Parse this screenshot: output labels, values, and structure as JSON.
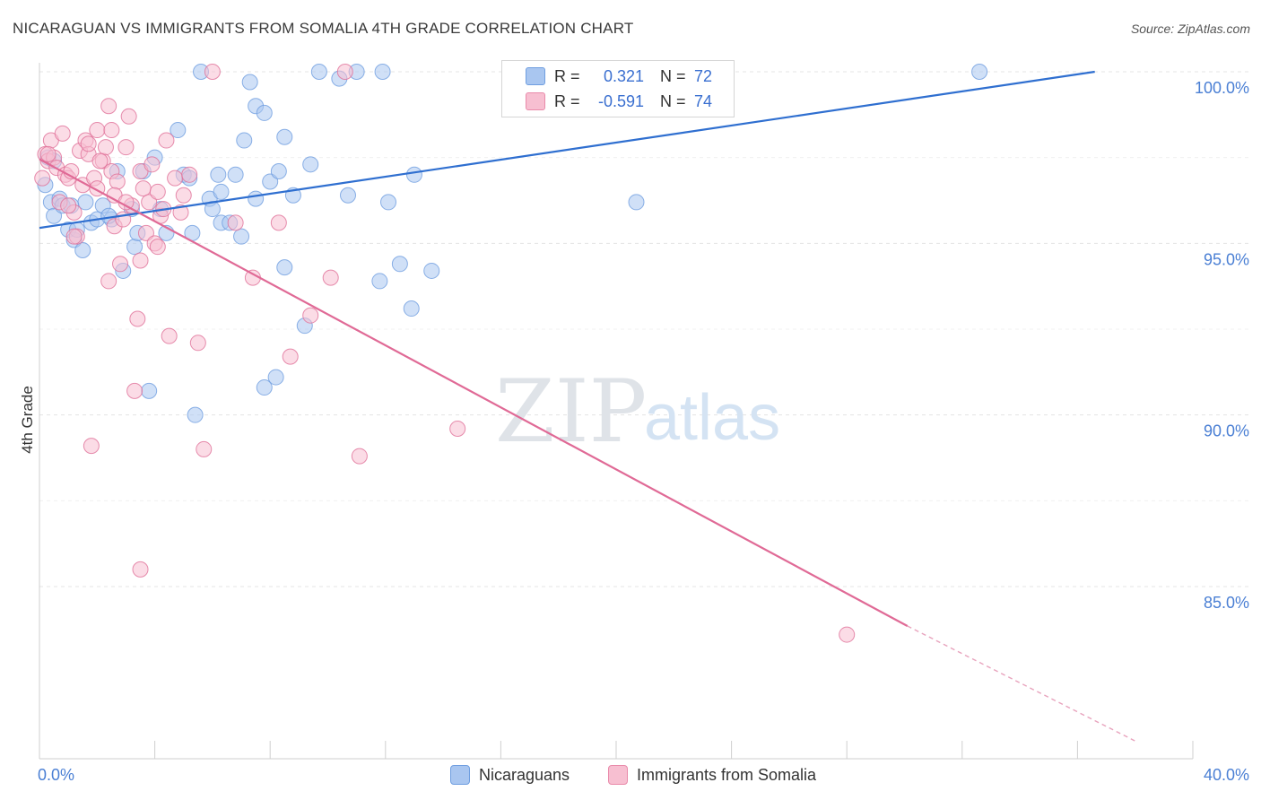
{
  "title": "NICARAGUAN VS IMMIGRANTS FROM SOMALIA 4TH GRADE CORRELATION CHART",
  "source": "Source: ZipAtlas.com",
  "watermark": {
    "zip": "ZIP",
    "atlas": "atlas"
  },
  "legend": {
    "rows": [
      {
        "r_label": "R =",
        "r_value": "0.321",
        "n_label": "N =",
        "n_value": "72",
        "color": "#a9c6f0",
        "border": "#6f9ee0"
      },
      {
        "r_label": "R =",
        "r_value": "-0.591",
        "n_label": "N =",
        "n_value": "74",
        "color": "#f7bfd1",
        "border": "#e98aaa"
      }
    ]
  },
  "bottom_legend": [
    {
      "label": "Nicaraguans",
      "color": "#a9c6f0",
      "border": "#6f9ee0"
    },
    {
      "label": "Immigrants from Somalia",
      "color": "#f7bfd1",
      "border": "#e98aaa"
    }
  ],
  "chart_data": {
    "type": "scatter",
    "title": "NICARAGUAN VS IMMIGRANTS FROM SOMALIA 4TH GRADE CORRELATION CHART",
    "xlabel": "",
    "ylabel": "4th Grade",
    "xlim": [
      0,
      40
    ],
    "ylim": [
      80.5,
      100.8
    ],
    "x_tick_labels": [
      "0.0%",
      "40.0%"
    ],
    "y_ticks": [
      100,
      95,
      90,
      85
    ],
    "y_tick_labels": [
      "100.0%",
      "95.0%",
      "90.0%",
      "85.0%"
    ],
    "grid": true,
    "series": [
      {
        "name": "Nicaraguans",
        "color": "#6f9ee0",
        "fill": "#a9c6f0",
        "trend": {
          "x": [
            0,
            36.6
          ],
          "y": [
            95.45,
            100.0
          ],
          "dashed_to": null
        },
        "points": [
          [
            0.2,
            96.7
          ],
          [
            0.4,
            96.2
          ],
          [
            0.5,
            95.8
          ],
          [
            0.7,
            96.3
          ],
          [
            0.8,
            96.1
          ],
          [
            1.0,
            95.4
          ],
          [
            1.2,
            95.1
          ],
          [
            1.3,
            95.4
          ],
          [
            1.5,
            94.8
          ],
          [
            1.6,
            96.2
          ],
          [
            1.8,
            95.6
          ],
          [
            2.0,
            95.7
          ],
          [
            2.2,
            96.1
          ],
          [
            2.5,
            95.7
          ],
          [
            2.7,
            97.1
          ],
          [
            2.9,
            94.2
          ],
          [
            3.2,
            96.0
          ],
          [
            3.3,
            94.9
          ],
          [
            3.4,
            95.3
          ],
          [
            3.6,
            97.1
          ],
          [
            3.8,
            90.7
          ],
          [
            4.0,
            97.5
          ],
          [
            4.2,
            96.0
          ],
          [
            4.4,
            95.3
          ],
          [
            4.8,
            98.3
          ],
          [
            5.0,
            97.0
          ],
          [
            5.2,
            96.9
          ],
          [
            5.3,
            95.3
          ],
          [
            5.4,
            90.0
          ],
          [
            5.6,
            100.0
          ],
          [
            5.9,
            96.3
          ],
          [
            6.0,
            96.0
          ],
          [
            6.2,
            97.0
          ],
          [
            6.3,
            96.5
          ],
          [
            6.3,
            95.6
          ],
          [
            6.6,
            95.6
          ],
          [
            6.8,
            97.0
          ],
          [
            7.0,
            95.2
          ],
          [
            7.1,
            98.0
          ],
          [
            7.3,
            99.7
          ],
          [
            7.5,
            99.0
          ],
          [
            7.5,
            96.3
          ],
          [
            7.8,
            98.8
          ],
          [
            7.8,
            90.8
          ],
          [
            8.0,
            96.8
          ],
          [
            8.2,
            91.1
          ],
          [
            8.3,
            97.1
          ],
          [
            8.5,
            98.1
          ],
          [
            8.5,
            94.3
          ],
          [
            8.8,
            96.4
          ],
          [
            9.2,
            92.6
          ],
          [
            9.4,
            97.3
          ],
          [
            9.7,
            100.0
          ],
          [
            10.4,
            99.8
          ],
          [
            10.7,
            96.4
          ],
          [
            11.0,
            100.0
          ],
          [
            11.8,
            93.9
          ],
          [
            11.9,
            100.0
          ],
          [
            12.1,
            96.2
          ],
          [
            12.5,
            94.4
          ],
          [
            12.9,
            93.1
          ],
          [
            13.0,
            97.0
          ],
          [
            13.6,
            94.2
          ],
          [
            17.3,
            100.0
          ],
          [
            20.7,
            96.2
          ],
          [
            22.9,
            100.0
          ],
          [
            23.7,
            100.0
          ],
          [
            32.6,
            100.0
          ],
          [
            0.3,
            97.5
          ],
          [
            0.5,
            97.4
          ],
          [
            1.1,
            96.1
          ],
          [
            2.4,
            95.8
          ]
        ]
      },
      {
        "name": "Immigrants from Somalia",
        "color": "#e07098",
        "fill": "#f7bfd1",
        "trend": {
          "x": [
            0,
            30.1
          ],
          "y": [
            97.45,
            83.85
          ],
          "dashed_to": {
            "x": 38.0,
            "y": 80.5
          }
        },
        "points": [
          [
            0.1,
            96.9
          ],
          [
            0.2,
            97.6
          ],
          [
            0.3,
            97.4
          ],
          [
            0.4,
            98.0
          ],
          [
            0.5,
            97.5
          ],
          [
            0.6,
            97.2
          ],
          [
            0.7,
            96.2
          ],
          [
            0.8,
            98.2
          ],
          [
            0.9,
            97.0
          ],
          [
            1.0,
            96.9
          ],
          [
            1.1,
            97.1
          ],
          [
            1.2,
            95.9
          ],
          [
            1.3,
            95.2
          ],
          [
            1.4,
            97.7
          ],
          [
            1.5,
            96.7
          ],
          [
            1.6,
            98.0
          ],
          [
            1.7,
            97.6
          ],
          [
            1.8,
            89.1
          ],
          [
            1.9,
            96.9
          ],
          [
            2.0,
            96.6
          ],
          [
            2.0,
            98.3
          ],
          [
            2.2,
            97.4
          ],
          [
            2.3,
            97.8
          ],
          [
            2.4,
            93.9
          ],
          [
            2.4,
            99.0
          ],
          [
            2.5,
            97.1
          ],
          [
            2.5,
            98.3
          ],
          [
            2.6,
            95.5
          ],
          [
            2.7,
            96.8
          ],
          [
            2.8,
            94.4
          ],
          [
            2.9,
            95.7
          ],
          [
            3.0,
            97.8
          ],
          [
            3.1,
            98.7
          ],
          [
            3.2,
            96.1
          ],
          [
            3.3,
            90.7
          ],
          [
            3.4,
            92.8
          ],
          [
            3.5,
            97.1
          ],
          [
            3.5,
            94.5
          ],
          [
            3.6,
            96.6
          ],
          [
            3.7,
            95.3
          ],
          [
            3.8,
            96.2
          ],
          [
            4.0,
            95.0
          ],
          [
            4.1,
            96.5
          ],
          [
            4.1,
            94.9
          ],
          [
            4.2,
            95.8
          ],
          [
            4.3,
            96.0
          ],
          [
            4.4,
            98.0
          ],
          [
            4.5,
            92.3
          ],
          [
            4.7,
            96.9
          ],
          [
            4.9,
            95.9
          ],
          [
            5.2,
            97.0
          ],
          [
            5.5,
            92.1
          ],
          [
            5.7,
            89.0
          ],
          [
            6.0,
            100.0
          ],
          [
            6.8,
            95.6
          ],
          [
            7.4,
            94.0
          ],
          [
            8.3,
            95.6
          ],
          [
            8.7,
            91.7
          ],
          [
            9.4,
            92.9
          ],
          [
            10.1,
            94.0
          ],
          [
            10.6,
            100.0
          ],
          [
            11.1,
            88.8
          ],
          [
            14.5,
            89.6
          ],
          [
            28.0,
            83.6
          ],
          [
            3.5,
            85.5
          ],
          [
            0.3,
            97.6
          ],
          [
            1.0,
            96.1
          ],
          [
            1.2,
            95.2
          ],
          [
            2.1,
            97.4
          ],
          [
            2.6,
            96.4
          ],
          [
            3.0,
            96.2
          ],
          [
            3.9,
            97.3
          ],
          [
            5.0,
            96.4
          ],
          [
            1.7,
            97.9
          ]
        ]
      }
    ]
  }
}
